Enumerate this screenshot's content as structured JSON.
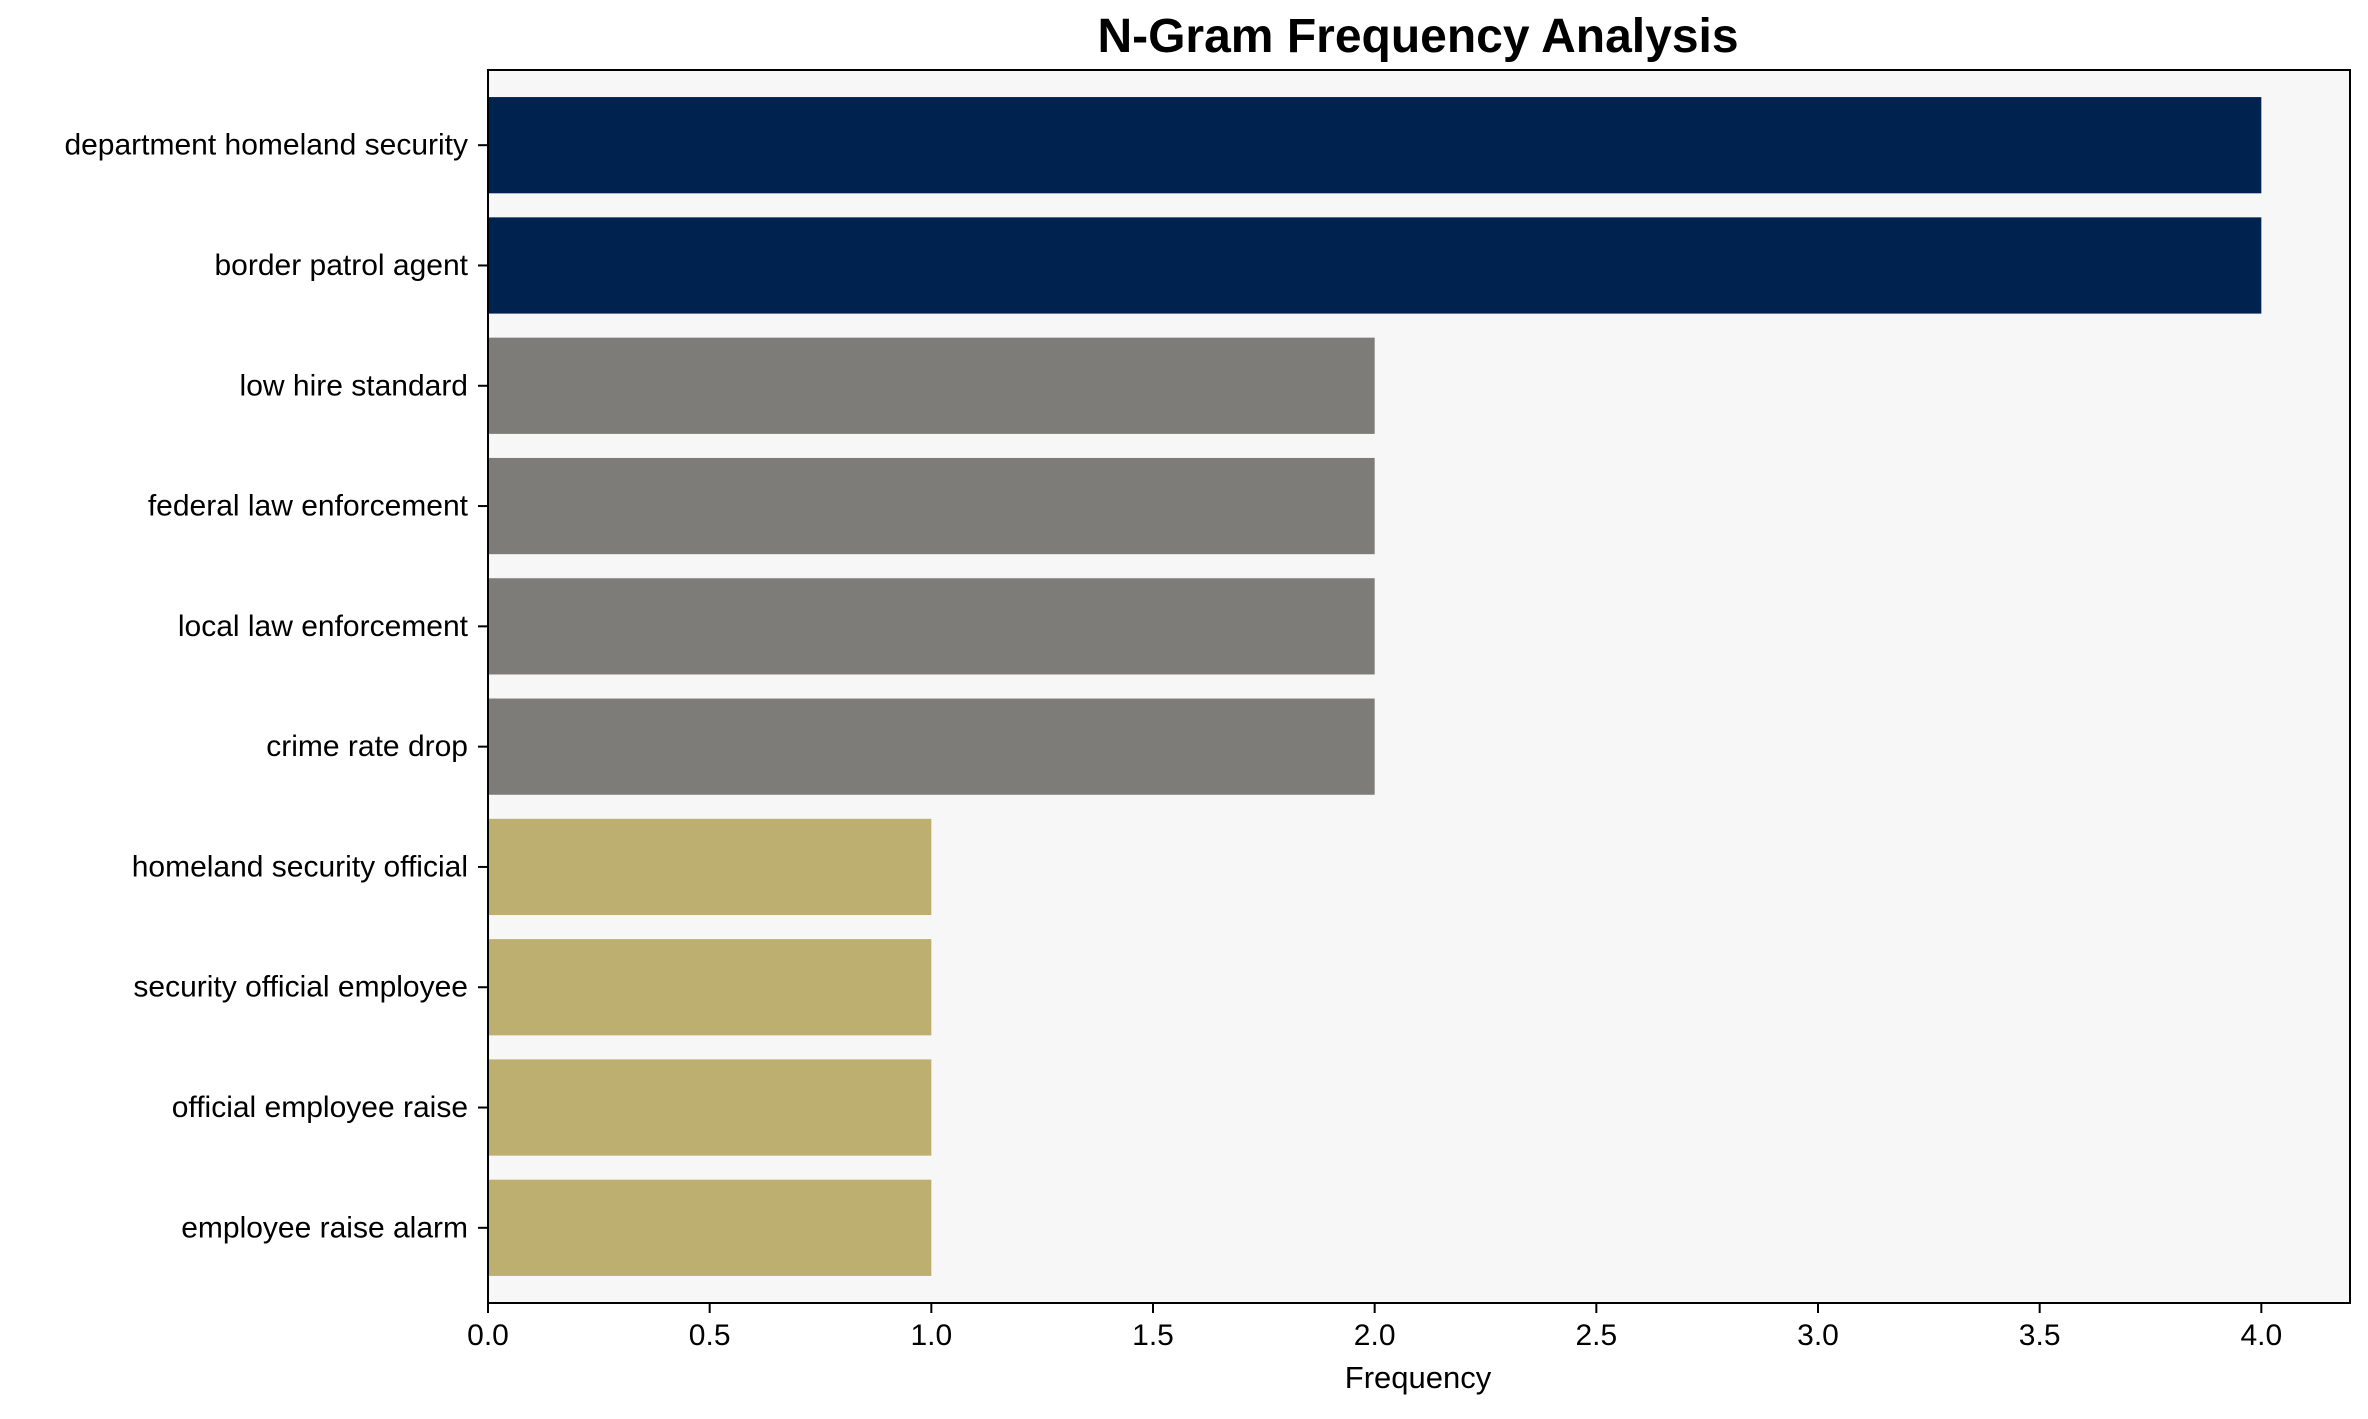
{
  "chart_data": {
    "type": "bar",
    "orientation": "horizontal",
    "title": "N-Gram Frequency Analysis",
    "xlabel": "Frequency",
    "ylabel": "",
    "xlim": [
      0,
      4.2
    ],
    "xticks": [
      0.0,
      0.5,
      1.0,
      1.5,
      2.0,
      2.5,
      3.0,
      3.5,
      4.0
    ],
    "xtick_labels": [
      "0.0",
      "0.5",
      "1.0",
      "1.5",
      "2.0",
      "2.5",
      "3.0",
      "3.5",
      "4.0"
    ],
    "grid": false,
    "legend": "none",
    "background_color": "#f7f7f7",
    "categories": [
      "department homeland security",
      "border patrol agent",
      "low hire standard",
      "federal law enforcement",
      "local law enforcement",
      "crime rate drop",
      "homeland security official",
      "security official employee",
      "official employee raise",
      "employee raise alarm"
    ],
    "values": [
      4,
      4,
      2,
      2,
      2,
      2,
      1,
      1,
      1,
      1
    ],
    "bar_colors": [
      "#00224e",
      "#00224e",
      "#7d7c78",
      "#7d7c78",
      "#7d7c78",
      "#7d7c78",
      "#bcaf6f",
      "#bcaf6f",
      "#bcaf6f",
      "#bcaf6f"
    ]
  }
}
